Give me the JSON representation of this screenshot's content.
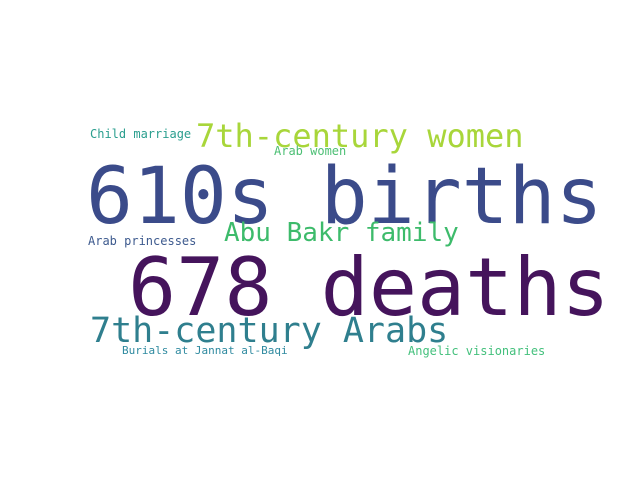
{
  "cloud": {
    "words": [
      {
        "text": "610s births",
        "color": "#3b4b8a"
      },
      {
        "text": "678 deaths",
        "color": "#45145c"
      },
      {
        "text": "7th-century women",
        "color": "#a8d63a"
      },
      {
        "text": "7th-century Arabs",
        "color": "#2f7f8e"
      },
      {
        "text": "Abu Bakr family",
        "color": "#3dbb6b"
      },
      {
        "text": "Child marriage",
        "color": "#2a9e8e"
      },
      {
        "text": "Arab women",
        "color": "#4cbf74"
      },
      {
        "text": "Arab princesses",
        "color": "#3d5a8e"
      },
      {
        "text": "Burials at Jannat al-Baqi",
        "color": "#2f8aa0"
      },
      {
        "text": "Angelic visionaries",
        "color": "#43c07c"
      }
    ]
  }
}
